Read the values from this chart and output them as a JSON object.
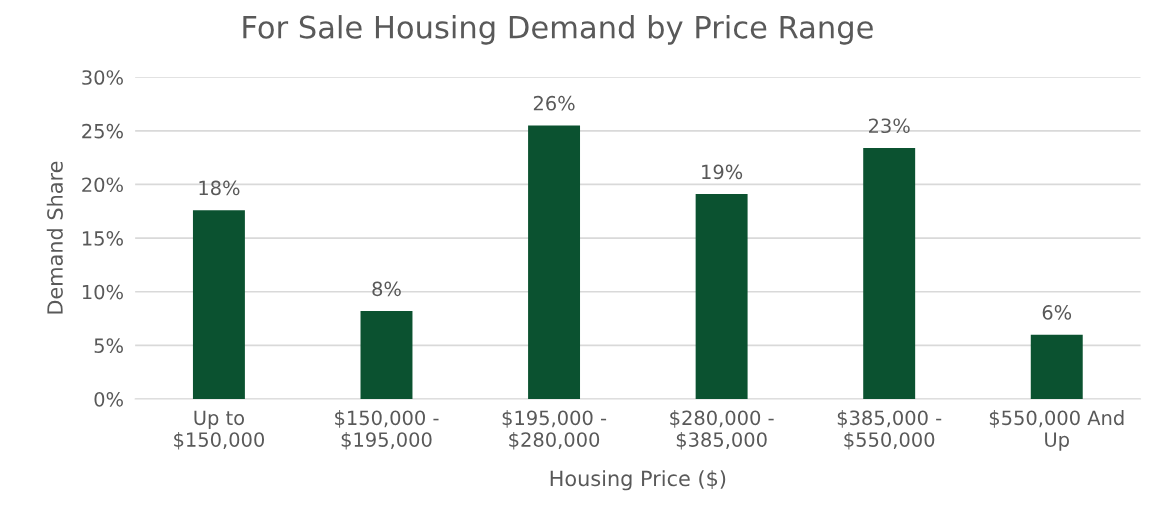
{
  "chart_data": {
    "type": "bar",
    "title": "For Sale Housing Demand by Price Range",
    "xlabel": "Housing Price ($)",
    "ylabel": "Demand Share",
    "categories": [
      "Up to\n$150,000",
      "$150,000 -\n$195,000",
      "$195,000 -\n$280,000",
      "$280,000 -\n$385,000",
      "$385,000 -\n$550,000",
      "$550,000 And\nUp"
    ],
    "values": [
      17.6,
      8.2,
      25.5,
      19.1,
      23.4,
      6.0
    ],
    "value_labels": [
      "18%",
      "8%",
      "26%",
      "19%",
      "23%",
      "6%"
    ],
    "color": "#0b5230",
    "ylim": [
      0,
      30
    ],
    "yticks": [
      {
        "value": 0,
        "label": "0%"
      },
      {
        "value": 5,
        "label": "5%"
      },
      {
        "value": 10,
        "label": "10%"
      },
      {
        "value": 15,
        "label": "15%"
      },
      {
        "value": 20,
        "label": "20%"
      },
      {
        "value": 25,
        "label": "25%"
      },
      {
        "value": 30,
        "label": "30%"
      }
    ],
    "grid": "y",
    "legend": false
  }
}
